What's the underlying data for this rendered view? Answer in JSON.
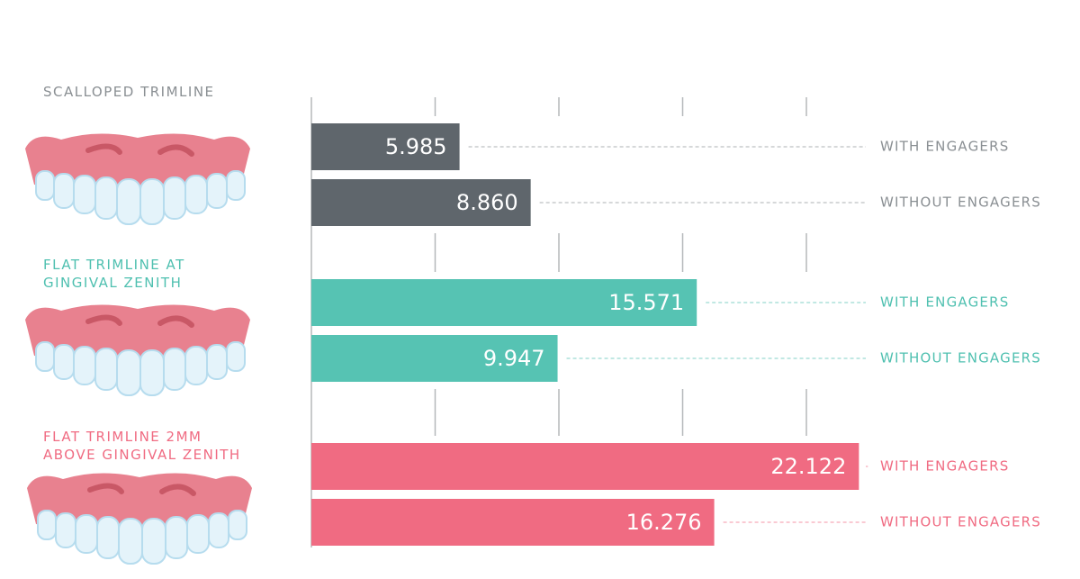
{
  "chart_data": {
    "type": "bar",
    "orientation": "horizontal",
    "categories": [
      "WITH ENGAGERS",
      "WITHOUT ENGAGERS"
    ],
    "series": [
      {
        "name": "SCALLOPED TRIMLINE",
        "color": "#5f666c",
        "label_color": "#8a8f93",
        "values": [
          5.985,
          8.86
        ],
        "value_labels": [
          "5.985",
          "8.860"
        ]
      },
      {
        "name": "FLAT TRIMLINE AT GINGIVAL ZENITH",
        "color": "#56c3b3",
        "label_color": "#4fc0b0",
        "values": [
          15.571,
          9.947
        ],
        "value_labels": [
          "15.571",
          "9.947"
        ]
      },
      {
        "name": "FLAT TRIMLINE 2MM ABOVE GINGIVAL ZENITH",
        "color": "#f06b82",
        "label_color": "#f06b82",
        "values": [
          22.122,
          16.276
        ],
        "value_labels": [
          "22.122",
          "16.276"
        ]
      }
    ],
    "xlim": [
      0,
      22
    ],
    "xticks": [
      0,
      5,
      10,
      15,
      20
    ],
    "grid": true
  }
}
